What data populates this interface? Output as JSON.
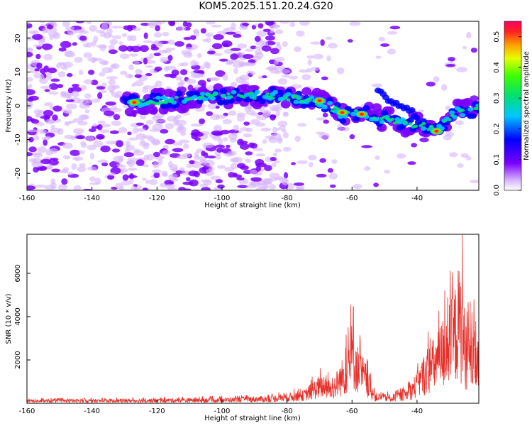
{
  "title": "KOM5.2025.151.20.24.G20",
  "colors": {
    "snr_line": "#e8302a",
    "axis": "#000000",
    "spec_base": "#7b00ff",
    "spec_faint": "#d7b4ff"
  },
  "chart_data": [
    {
      "type": "heatmap",
      "xlabel": "Height of straight line (km)",
      "ylabel": "Frequency (Hz)",
      "xlim": [
        -160,
        -21
      ],
      "ylim": [
        -25,
        25
      ],
      "xticks": [
        "-160",
        "-140",
        "-120",
        "-100",
        "-80",
        "-60",
        "-40"
      ],
      "yticks": [
        "-20",
        "-10",
        "0",
        "10",
        "20"
      ],
      "colorbar": {
        "label": "Normalized spectral amplitude",
        "range": [
          0.0,
          0.55
        ],
        "ticks": [
          "0.0",
          "0.1",
          "0.2",
          "0.3",
          "0.4",
          "0.5"
        ]
      },
      "ridge": [
        {
          "x": -128,
          "y": 1.0
        },
        {
          "x": -118,
          "y": 1.5
        },
        {
          "x": -105,
          "y": 2.5
        },
        {
          "x": -95,
          "y": 3.0
        },
        {
          "x": -85,
          "y": 3.0
        },
        {
          "x": -75,
          "y": 2.0
        },
        {
          "x": -68,
          "y": 0.5
        },
        {
          "x": -63,
          "y": -2.5
        },
        {
          "x": -57,
          "y": -2.0
        },
        {
          "x": -50,
          "y": -4.0
        },
        {
          "x": -45,
          "y": -5.0
        },
        {
          "x": -38,
          "y": -6.0
        },
        {
          "x": -34,
          "y": -7.0
        },
        {
          "x": -28,
          "y": -2.0
        },
        {
          "x": -22,
          "y": -1.0
        }
      ],
      "peaks": [
        {
          "x": -127,
          "y": 1,
          "value": 0.45
        },
        {
          "x": -70,
          "y": 1.5,
          "value": 0.4
        },
        {
          "x": -57,
          "y": -2.5,
          "value": 0.42
        },
        {
          "x": -34,
          "y": -7.5,
          "value": 0.45
        },
        {
          "x": -63,
          "y": -2.0,
          "value": 0.35
        }
      ]
    },
    {
      "type": "line",
      "xlabel": "Height of straight line (km)",
      "ylabel": "SNR (10 * v/v)",
      "xlim": [
        -160,
        -21
      ],
      "ylim": [
        0,
        7800
      ],
      "xticks": [
        "-160",
        "-140",
        "-120",
        "-100",
        "-80",
        "-60",
        "-40"
      ],
      "yticks": [
        "2000",
        "4000",
        "6000"
      ],
      "series": [
        {
          "envelope": [
            {
              "x": -160,
              "y": 180
            },
            {
              "x": -130,
              "y": 200
            },
            {
              "x": -100,
              "y": 260
            },
            {
              "x": -85,
              "y": 350
            },
            {
              "x": -75,
              "y": 600
            },
            {
              "x": -70,
              "y": 1300
            },
            {
              "x": -66,
              "y": 1100
            },
            {
              "x": -62,
              "y": 2400
            },
            {
              "x": -60,
              "y": 3800
            },
            {
              "x": -58,
              "y": 2600
            },
            {
              "x": -56,
              "y": 2000
            },
            {
              "x": -53,
              "y": 500
            },
            {
              "x": -48,
              "y": 400
            },
            {
              "x": -43,
              "y": 700
            },
            {
              "x": -40,
              "y": 1500
            },
            {
              "x": -37,
              "y": 2600
            },
            {
              "x": -34,
              "y": 3200
            },
            {
              "x": -31,
              "y": 4500
            },
            {
              "x": -29,
              "y": 5000
            },
            {
              "x": -27,
              "y": 6500
            },
            {
              "x": -25,
              "y": 4000
            },
            {
              "x": -23,
              "y": 3500
            },
            {
              "x": -21,
              "y": 3000
            }
          ],
          "spikes": [
            {
              "x": -59.6,
              "y": 4450
            },
            {
              "x": -31.5,
              "y": 5200
            },
            {
              "x": -26.1,
              "y": 7800
            },
            {
              "x": -22.5,
              "y": 4800
            }
          ]
        }
      ]
    }
  ]
}
